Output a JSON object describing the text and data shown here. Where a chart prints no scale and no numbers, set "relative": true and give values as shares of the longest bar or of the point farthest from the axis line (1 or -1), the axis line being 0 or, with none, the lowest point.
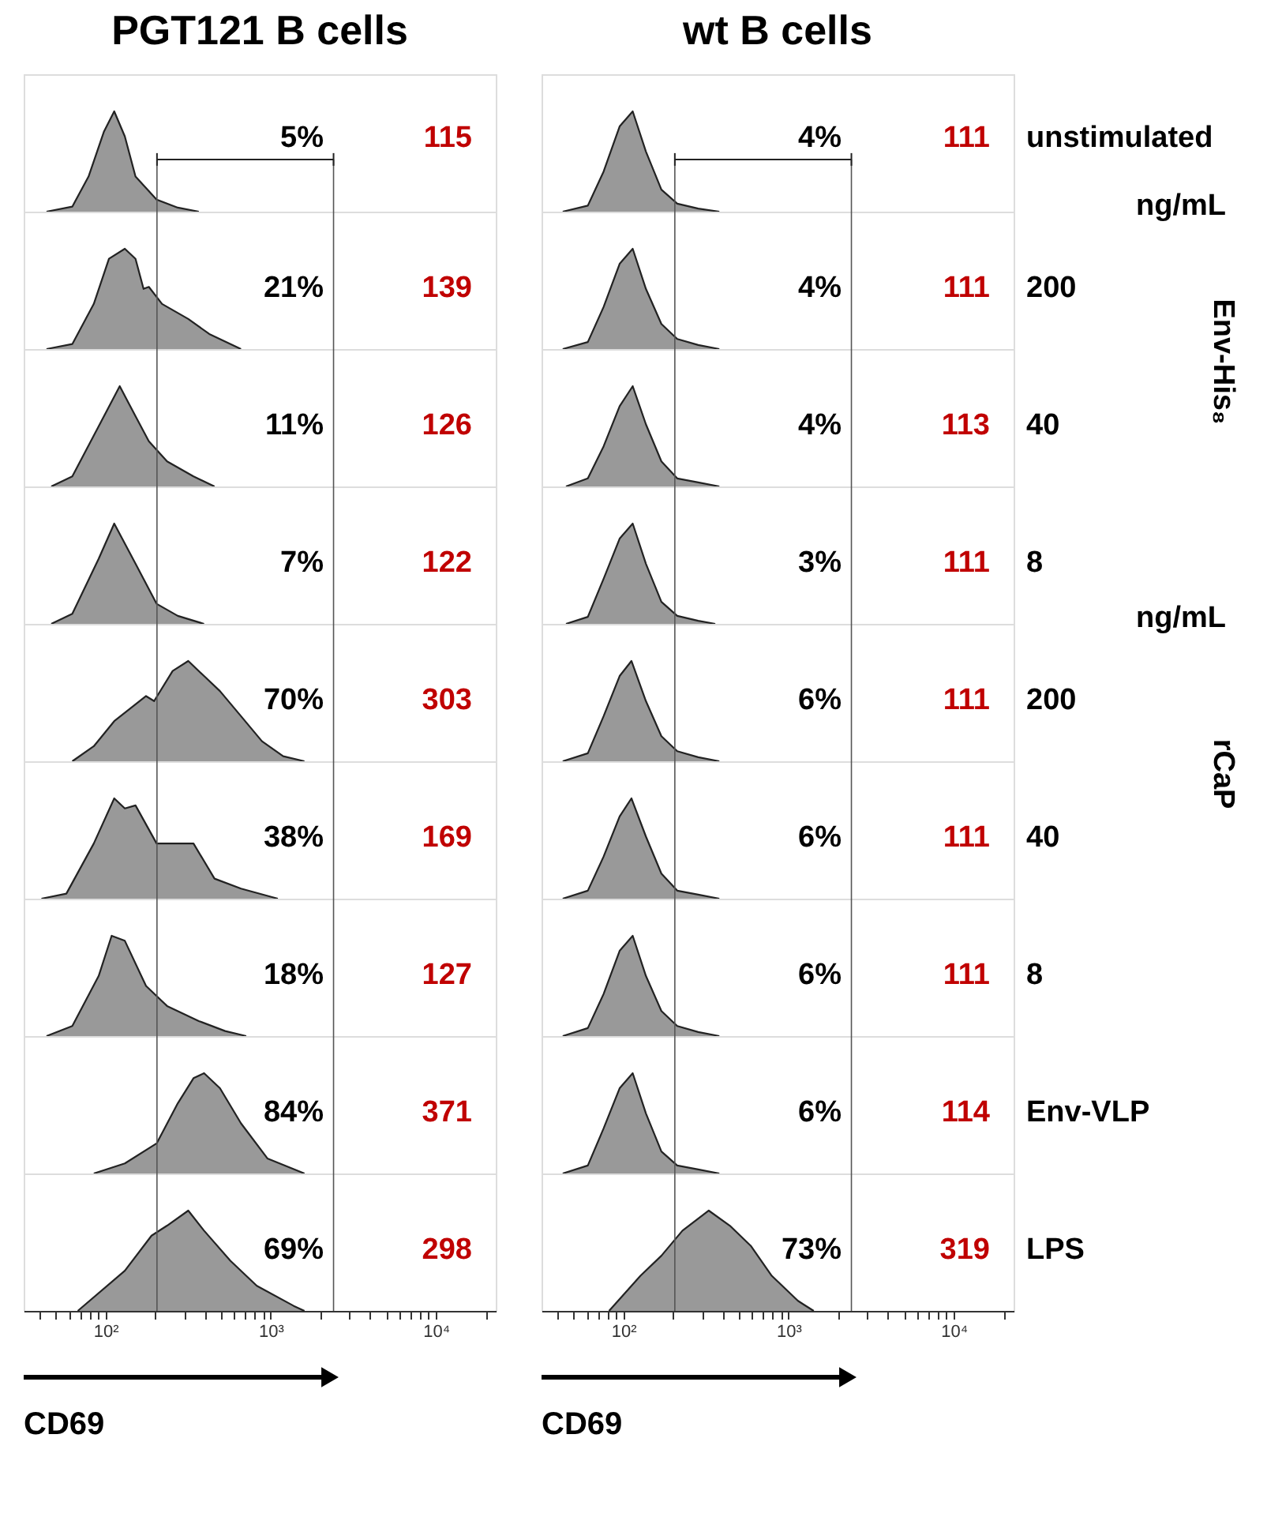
{
  "chart_data": [
    {
      "type": "area",
      "title": "PGT121 B cells",
      "relative": true,
      "xlim": [
        32,
        23000
      ],
      "log": "x",
      "tick_labels": false,
      "x": [
        44,
        63,
        79,
        98,
        113,
        131,
        152,
        204,
        274,
        367
      ],
      "series": [
        {
          "color": "#999999",
          "values": [
            0,
            0.05,
            0.35,
            0.8,
            1,
            0.75,
            0.35,
            0.12,
            0.04,
            0
          ]
        }
      ],
      "ref_lines": [
        {
          "axis": "x",
          "value": 205
        },
        {
          "axis": "x",
          "value": 2400
        }
      ],
      "annotations": [
        "5%",
        "115"
      ]
    },
    {
      "type": "area",
      "title": "wt B cells",
      "relative": true,
      "xlim": [
        32,
        23000
      ],
      "log": "x",
      "tick_labels": false,
      "x": [
        43,
        61,
        76,
        95,
        114,
        137,
        170,
        212,
        284,
        381
      ],
      "series": [
        {
          "color": "#999999",
          "values": [
            0,
            0.06,
            0.4,
            0.85,
            1,
            0.6,
            0.22,
            0.08,
            0.03,
            0
          ]
        }
      ],
      "ref_lines": [
        {
          "axis": "x",
          "value": 205
        },
        {
          "axis": "x",
          "value": 2400
        }
      ],
      "annotations": [
        "4%",
        "111",
        "unstimulated"
      ]
    },
    {
      "type": "area",
      "relative": true,
      "xlim": [
        32,
        23000
      ],
      "log": "x",
      "tick_labels": false,
      "x": [
        44,
        63,
        85,
        105,
        131,
        152,
        170,
        183,
        220,
        317,
        425,
        661
      ],
      "series": [
        {
          "color": "#999999",
          "values": [
            0,
            0.05,
            0.45,
            0.9,
            1,
            0.9,
            0.6,
            0.62,
            0.45,
            0.3,
            0.15,
            0
          ]
        }
      ],
      "ref_lines": [
        {
          "axis": "x",
          "value": 205
        },
        {
          "axis": "x",
          "value": 2400
        }
      ],
      "annotations": [
        "21%",
        "139"
      ]
    },
    {
      "type": "area",
      "relative": true,
      "xlim": [
        32,
        23000
      ],
      "log": "x",
      "tick_labels": false,
      "x": [
        43,
        61,
        76,
        95,
        114,
        137,
        170,
        212,
        284,
        381
      ],
      "series": [
        {
          "color": "#999999",
          "values": [
            0,
            0.07,
            0.42,
            0.85,
            1,
            0.6,
            0.25,
            0.1,
            0.04,
            0
          ]
        }
      ],
      "ref_lines": [
        {
          "axis": "x",
          "value": 205
        },
        {
          "axis": "x",
          "value": 2400
        }
      ],
      "annotations": [
        "4%",
        "111",
        "200",
        "ng/mL"
      ]
    },
    {
      "type": "area",
      "relative": true,
      "xlim": [
        32,
        23000
      ],
      "log": "x",
      "tick_labels": false,
      "x": [
        47,
        63,
        91,
        122,
        152,
        183,
        236,
        341,
        457
      ],
      "series": [
        {
          "color": "#999999",
          "values": [
            0,
            0.1,
            0.6,
            1,
            0.7,
            0.45,
            0.25,
            0.1,
            0
          ]
        }
      ],
      "ref_lines": [
        {
          "axis": "x",
          "value": 205
        },
        {
          "axis": "x",
          "value": 2400
        }
      ],
      "annotations": [
        "11%",
        "126"
      ]
    },
    {
      "type": "area",
      "relative": true,
      "xlim": [
        32,
        23000
      ],
      "log": "x",
      "tick_labels": false,
      "x": [
        45,
        61,
        76,
        95,
        114,
        137,
        170,
        212,
        284,
        381
      ],
      "series": [
        {
          "color": "#999999",
          "values": [
            0,
            0.08,
            0.4,
            0.8,
            1,
            0.62,
            0.25,
            0.08,
            0.04,
            0
          ]
        }
      ],
      "ref_lines": [
        {
          "axis": "x",
          "value": 205
        },
        {
          "axis": "x",
          "value": 2400
        }
      ],
      "annotations": [
        "4%",
        "113",
        "40",
        "Env-His₈"
      ]
    },
    {
      "type": "area",
      "relative": true,
      "xlim": [
        32,
        23000
      ],
      "log": "x",
      "tick_labels": false,
      "x": [
        47,
        63,
        91,
        113,
        152,
        204,
        274,
        395
      ],
      "series": [
        {
          "color": "#999999",
          "values": [
            0,
            0.1,
            0.65,
            1,
            0.6,
            0.2,
            0.08,
            0
          ]
        }
      ],
      "ref_lines": [
        {
          "axis": "x",
          "value": 205
        },
        {
          "axis": "x",
          "value": 2400
        }
      ],
      "annotations": [
        "7%",
        "122"
      ]
    },
    {
      "type": "area",
      "relative": true,
      "xlim": [
        32,
        23000
      ],
      "log": "x",
      "tick_labels": false,
      "x": [
        45,
        61,
        76,
        95,
        114,
        137,
        170,
        212,
        284,
        360
      ],
      "series": [
        {
          "color": "#999999",
          "values": [
            0,
            0.07,
            0.45,
            0.85,
            1,
            0.6,
            0.22,
            0.08,
            0.03,
            0
          ]
        }
      ],
      "ref_lines": [
        {
          "axis": "x",
          "value": 205
        },
        {
          "axis": "x",
          "value": 2400
        }
      ],
      "annotations": [
        "3%",
        "111",
        "8"
      ]
    },
    {
      "type": "area",
      "relative": true,
      "xlim": [
        32,
        23000
      ],
      "log": "x",
      "tick_labels": false,
      "x": [
        63,
        85,
        113,
        176,
        197,
        255,
        317,
        395,
        493,
        661,
        885,
        1190,
        1600
      ],
      "series": [
        {
          "color": "#999999",
          "values": [
            0,
            0.15,
            0.4,
            0.65,
            0.6,
            0.9,
            1,
            0.85,
            0.7,
            0.45,
            0.2,
            0.05,
            0
          ]
        }
      ],
      "ref_lines": [
        {
          "axis": "x",
          "value": 205
        },
        {
          "axis": "x",
          "value": 2400
        }
      ],
      "annotations": [
        "70%",
        "303"
      ]
    },
    {
      "type": "area",
      "relative": true,
      "xlim": [
        32,
        23000
      ],
      "log": "x",
      "tick_labels": false,
      "x": [
        43,
        61,
        76,
        95,
        112,
        137,
        170,
        212,
        284,
        381
      ],
      "series": [
        {
          "color": "#999999",
          "values": [
            0,
            0.08,
            0.45,
            0.85,
            1,
            0.6,
            0.25,
            0.1,
            0.04,
            0
          ]
        }
      ],
      "ref_lines": [
        {
          "axis": "x",
          "value": 205
        },
        {
          "axis": "x",
          "value": 2400
        }
      ],
      "annotations": [
        "6%",
        "111",
        "200",
        "ng/mL"
      ]
    },
    {
      "type": "area",
      "relative": true,
      "xlim": [
        32,
        23000
      ],
      "log": "x",
      "tick_labels": false,
      "x": [
        41,
        58,
        85,
        113,
        131,
        152,
        204,
        274,
        341,
        457,
        661,
        1104
      ],
      "series": [
        {
          "color": "#999999",
          "values": [
            0,
            0.05,
            0.55,
            1,
            0.9,
            0.93,
            0.55,
            0.55,
            0.55,
            0.2,
            0.1,
            0
          ]
        }
      ],
      "ref_lines": [
        {
          "axis": "x",
          "value": 205
        },
        {
          "axis": "x",
          "value": 2400
        }
      ],
      "annotations": [
        "38%",
        "169"
      ]
    },
    {
      "type": "area",
      "relative": true,
      "xlim": [
        32,
        23000
      ],
      "log": "x",
      "tick_labels": false,
      "x": [
        43,
        61,
        76,
        95,
        112,
        137,
        170,
        212,
        284,
        381
      ],
      "series": [
        {
          "color": "#999999",
          "values": [
            0,
            0.08,
            0.42,
            0.82,
            1,
            0.62,
            0.25,
            0.08,
            0.04,
            0
          ]
        }
      ],
      "ref_lines": [
        {
          "axis": "x",
          "value": 205
        },
        {
          "axis": "x",
          "value": 2400
        }
      ],
      "annotations": [
        "6%",
        "111",
        "40",
        "rCaP"
      ]
    },
    {
      "type": "area",
      "relative": true,
      "xlim": [
        32,
        23000
      ],
      "log": "x",
      "tick_labels": false,
      "x": [
        44,
        63,
        91,
        109,
        131,
        176,
        236,
        367,
        530,
        711
      ],
      "series": [
        {
          "color": "#999999",
          "values": [
            0,
            0.1,
            0.6,
            1,
            0.95,
            0.5,
            0.3,
            0.15,
            0.05,
            0
          ]
        }
      ],
      "ref_lines": [
        {
          "axis": "x",
          "value": 205
        },
        {
          "axis": "x",
          "value": 2400
        }
      ],
      "annotations": [
        "18%",
        "127"
      ]
    },
    {
      "type": "area",
      "relative": true,
      "xlim": [
        32,
        23000
      ],
      "log": "x",
      "tick_labels": false,
      "x": [
        43,
        61,
        76,
        95,
        114,
        137,
        170,
        212,
        284,
        381
      ],
      "series": [
        {
          "color": "#999999",
          "values": [
            0,
            0.08,
            0.42,
            0.85,
            1,
            0.6,
            0.25,
            0.1,
            0.04,
            0
          ]
        }
      ],
      "ref_lines": [
        {
          "axis": "x",
          "value": 205
        },
        {
          "axis": "x",
          "value": 2400
        }
      ],
      "annotations": [
        "6%",
        "111",
        "8"
      ]
    },
    {
      "type": "area",
      "relative": true,
      "xlim": [
        32,
        23000
      ],
      "log": "x",
      "tick_labels": false,
      "x": [
        85,
        131,
        204,
        274,
        341,
        395,
        493,
        661,
        955,
        1600
      ],
      "series": [
        {
          "color": "#999999",
          "values": [
            0,
            0.1,
            0.3,
            0.7,
            0.95,
            1,
            0.85,
            0.5,
            0.15,
            0
          ]
        }
      ],
      "ref_lines": [
        {
          "axis": "x",
          "value": 205
        },
        {
          "axis": "x",
          "value": 2400
        }
      ],
      "annotations": [
        "84%",
        "371"
      ]
    },
    {
      "type": "area",
      "relative": true,
      "xlim": [
        32,
        23000
      ],
      "log": "x",
      "tick_labels": false,
      "x": [
        43,
        61,
        76,
        95,
        114,
        137,
        170,
        212,
        284,
        381
      ],
      "series": [
        {
          "color": "#999999",
          "values": [
            0,
            0.08,
            0.45,
            0.85,
            1,
            0.6,
            0.22,
            0.08,
            0.04,
            0
          ]
        }
      ],
      "ref_lines": [
        {
          "axis": "x",
          "value": 205
        },
        {
          "axis": "x",
          "value": 2400
        }
      ],
      "annotations": [
        "6%",
        "114",
        "Env-VLP"
      ]
    },
    {
      "type": "area",
      "xlabel": "CD69",
      "relative": true,
      "xlim": [
        32,
        23000
      ],
      "log": "x",
      "x": [
        68,
        131,
        190,
        236,
        317,
        395,
        570,
        824,
        1377,
        1600
      ],
      "series": [
        {
          "color": "#999999",
          "values": [
            0,
            0.4,
            0.75,
            0.85,
            1,
            0.8,
            0.5,
            0.25,
            0.05,
            0
          ]
        }
      ],
      "ref_lines": [
        {
          "axis": "x",
          "value": 205
        },
        {
          "axis": "x",
          "value": 2400
        }
      ],
      "annotations": [
        "69%",
        "298"
      ],
      "xticks": [
        {
          "value": 40,
          "label": null
        },
        {
          "value": 50,
          "label": null
        },
        {
          "value": 60,
          "label": null
        },
        {
          "value": 70,
          "label": null
        },
        {
          "value": 80,
          "label": null
        },
        {
          "value": 90,
          "label": null
        },
        {
          "value": 100,
          "label": "10²"
        },
        {
          "value": 200,
          "label": null
        },
        {
          "value": 300,
          "label": null
        },
        {
          "value": 400,
          "label": null
        },
        {
          "value": 500,
          "label": null
        },
        {
          "value": 600,
          "label": null
        },
        {
          "value": 700,
          "label": null
        },
        {
          "value": 800,
          "label": null
        },
        {
          "value": 900,
          "label": null
        },
        {
          "value": 1000,
          "label": "10³"
        },
        {
          "value": 2000,
          "label": null
        },
        {
          "value": 3000,
          "label": null
        },
        {
          "value": 4000,
          "label": null
        },
        {
          "value": 5000,
          "label": null
        },
        {
          "value": 6000,
          "label": null
        },
        {
          "value": 7000,
          "label": null
        },
        {
          "value": 8000,
          "label": null
        },
        {
          "value": 9000,
          "label": null
        },
        {
          "value": 10000,
          "label": "10⁴"
        },
        {
          "value": 20000,
          "label": null
        }
      ]
    },
    {
      "type": "area",
      "xlabel": "CD69",
      "relative": true,
      "xlim": [
        32,
        23000
      ],
      "log": "x",
      "x": [
        82,
        127,
        170,
        228,
        329,
        441,
        590,
        791,
        1140,
        1420
      ],
      "series": [
        {
          "color": "#999999",
          "values": [
            0,
            0.35,
            0.55,
            0.8,
            1,
            0.85,
            0.65,
            0.35,
            0.1,
            0
          ]
        }
      ],
      "ref_lines": [
        {
          "axis": "x",
          "value": 205
        },
        {
          "axis": "x",
          "value": 2400
        }
      ],
      "annotations": [
        "73%",
        "319",
        "LPS"
      ],
      "xticks": [
        {
          "value": 40,
          "label": null
        },
        {
          "value": 50,
          "label": null
        },
        {
          "value": 60,
          "label": null
        },
        {
          "value": 70,
          "label": null
        },
        {
          "value": 80,
          "label": null
        },
        {
          "value": 90,
          "label": null
        },
        {
          "value": 100,
          "label": "10²"
        },
        {
          "value": 200,
          "label": null
        },
        {
          "value": 300,
          "label": null
        },
        {
          "value": 400,
          "label": null
        },
        {
          "value": 500,
          "label": null
        },
        {
          "value": 600,
          "label": null
        },
        {
          "value": 700,
          "label": null
        },
        {
          "value": 800,
          "label": null
        },
        {
          "value": 900,
          "label": null
        },
        {
          "value": 1000,
          "label": "10³"
        },
        {
          "value": 2000,
          "label": null
        },
        {
          "value": 3000,
          "label": null
        },
        {
          "value": 4000,
          "label": null
        },
        {
          "value": 5000,
          "label": null
        },
        {
          "value": 6000,
          "label": null
        },
        {
          "value": 7000,
          "label": null
        },
        {
          "value": 8000,
          "label": null
        },
        {
          "value": 9000,
          "label": null
        },
        {
          "value": 10000,
          "label": "10⁴"
        },
        {
          "value": 20000,
          "label": null
        }
      ]
    }
  ]
}
